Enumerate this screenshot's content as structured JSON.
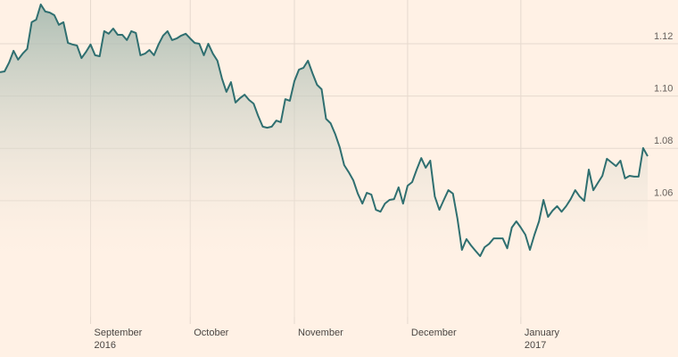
{
  "chart_data": {
    "type": "area-line",
    "categories": [
      null,
      null,
      null,
      null,
      null,
      null,
      null,
      null,
      null,
      null,
      null,
      null,
      null,
      null,
      null,
      null,
      null,
      null,
      null,
      null,
      "September\n2016",
      null,
      null,
      null,
      null,
      null,
      null,
      null,
      null,
      null,
      null,
      null,
      null,
      null,
      null,
      null,
      null,
      null,
      null,
      null,
      null,
      null,
      "October",
      null,
      null,
      null,
      null,
      null,
      null,
      null,
      null,
      null,
      null,
      null,
      null,
      null,
      null,
      null,
      null,
      null,
      null,
      null,
      null,
      null,
      null,
      "November",
      null,
      null,
      null,
      null,
      null,
      null,
      null,
      null,
      null,
      null,
      null,
      null,
      null,
      null,
      null,
      null,
      null,
      null,
      null,
      null,
      null,
      null,
      null,
      null,
      "December",
      null,
      null,
      null,
      null,
      null,
      null,
      null,
      null,
      null,
      null,
      null,
      null,
      null,
      null,
      null,
      null,
      null,
      null,
      null,
      null,
      null,
      null,
      null,
      null,
      "January\n2017",
      null,
      null,
      null,
      null,
      null,
      null,
      null,
      null,
      null,
      null,
      null,
      null,
      null,
      null,
      null,
      null,
      null,
      null,
      null,
      null,
      null,
      null,
      null,
      null,
      null,
      null,
      null,
      null
    ],
    "values": [
      1.1091,
      1.1094,
      1.1128,
      1.1173,
      1.1139,
      1.1162,
      1.118,
      1.1282,
      1.1292,
      1.135,
      1.1323,
      1.1319,
      1.1309,
      1.1272,
      1.1282,
      1.1203,
      1.1197,
      1.1193,
      1.1145,
      1.1169,
      1.1197,
      1.1156,
      1.1152,
      1.1248,
      1.1238,
      1.1258,
      1.1234,
      1.1234,
      1.1214,
      1.1248,
      1.1241,
      1.1156,
      1.1162,
      1.1176,
      1.1156,
      1.1197,
      1.1231,
      1.1248,
      1.1214,
      1.122,
      1.1231,
      1.1238,
      1.122,
      1.1203,
      1.12,
      1.1156,
      1.12,
      1.1162,
      1.1135,
      1.1067,
      1.1016,
      1.1053,
      1.0975,
      1.0992,
      1.1005,
      1.0985,
      1.0971,
      1.0924,
      1.0883,
      1.0879,
      1.0883,
      1.0906,
      1.09,
      1.0988,
      1.0982,
      1.1057,
      1.1101,
      1.1108,
      1.1135,
      1.1087,
      1.1043,
      1.1026,
      1.0913,
      1.0896,
      1.0855,
      1.0804,
      1.0736,
      1.0709,
      1.0678,
      1.0627,
      1.0589,
      1.063,
      1.0623,
      1.0565,
      1.0558,
      1.0589,
      1.0603,
      1.0606,
      1.0651,
      1.0589,
      1.0657,
      1.0671,
      1.0719,
      1.0763,
      1.0726,
      1.0753,
      1.0616,
      1.0565,
      1.0603,
      1.064,
      1.0627,
      1.0531,
      1.0412,
      1.0453,
      1.0429,
      1.0408,
      1.0388,
      1.0422,
      1.0435,
      1.0456,
      1.0456,
      1.0456,
      1.0418,
      1.0497,
      1.0521,
      1.0497,
      1.047,
      1.0412,
      1.047,
      1.0521,
      1.0603,
      1.0538,
      1.0562,
      1.0579,
      1.0558,
      1.0579,
      1.0606,
      1.064,
      1.0616,
      1.0599,
      1.0719,
      1.064,
      1.0668,
      1.0695,
      1.076,
      1.0746,
      1.0732,
      1.0753,
      1.0685,
      1.0695,
      1.0692,
      1.0692,
      1.0801,
      1.077
    ],
    "color": "#2f6f70",
    "ylim": [
      1.0156,
      1.1367
    ],
    "yticks": [
      1.06,
      {
        "value": 1.08,
        "label": "1.08"
      },
      {
        "value": 1.1,
        "label": "1.10"
      },
      1.12
    ],
    "grid": true
  }
}
